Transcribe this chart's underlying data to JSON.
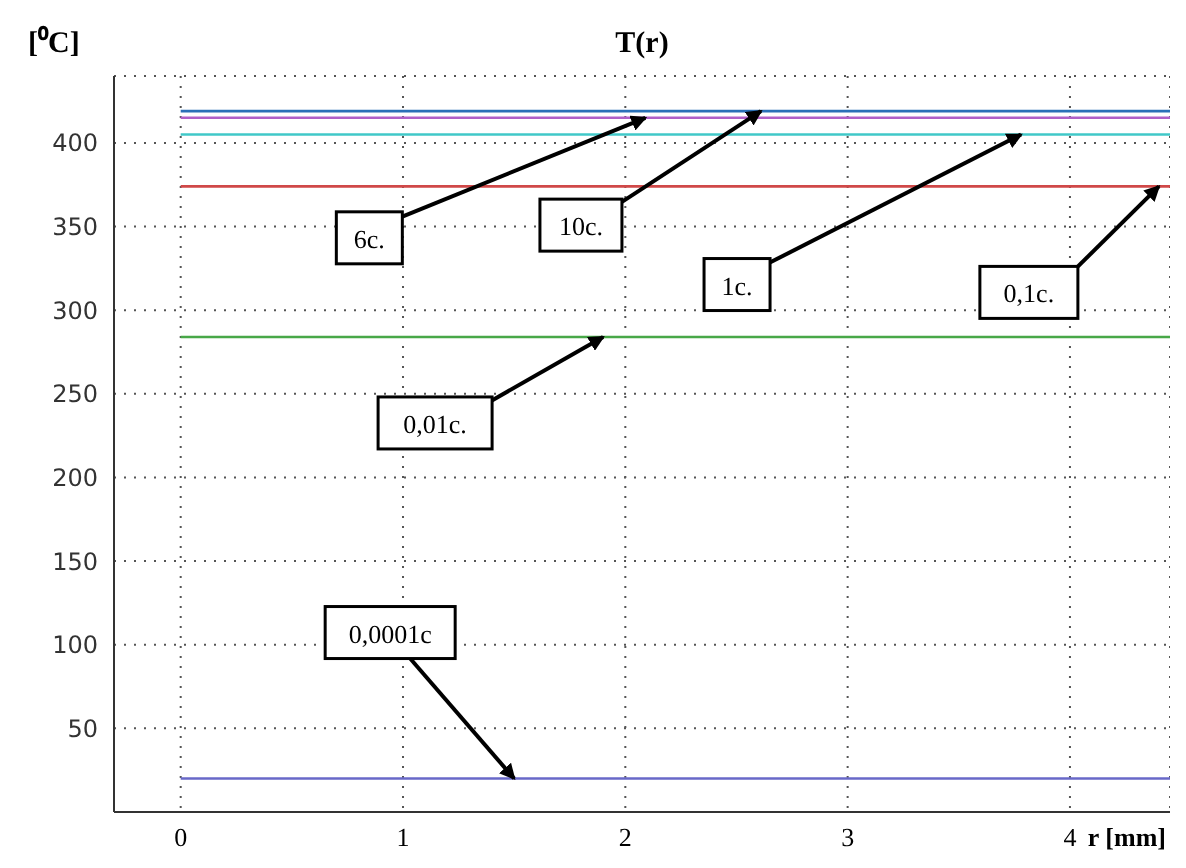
{
  "chart_data": {
    "type": "line",
    "title": "T(r)",
    "ylabel": "[⁰C]",
    "xlabel": "r [mm]",
    "x": [
      0,
      4.45
    ],
    "series": [
      {
        "color": "#2a70b8",
        "values": [
          419,
          419
        ]
      },
      {
        "color": "#b060c8",
        "values": [
          415,
          415
        ]
      },
      {
        "color": "#40c8c8",
        "values": [
          405,
          405
        ]
      },
      {
        "color": "#d04848",
        "values": [
          374,
          374
        ]
      },
      {
        "color": "#48a848",
        "values": [
          284,
          284
        ]
      },
      {
        "color": "#6868c8",
        "values": [
          20,
          20
        ]
      }
    ],
    "xlim": [
      -0.3,
      4.45
    ],
    "xticks": [
      0,
      1,
      2,
      3,
      4
    ],
    "ylim": [
      0,
      440
    ],
    "yticks": [
      50,
      100,
      150,
      200,
      250,
      300,
      350,
      400
    ],
    "grid": true,
    "marker": "none",
    "line_style": "solid",
    "annotations": [
      {
        "text": "6c.",
        "x": 2.09,
        "y": 415
      },
      {
        "text": "10c.",
        "x": 2.61,
        "y": 419
      },
      {
        "text": "1c.",
        "x": 3.78,
        "y": 405
      },
      {
        "text": "0,1c.",
        "x": 4.4,
        "y": 374
      },
      {
        "text": "0,01c.",
        "x": 1.9,
        "y": 284
      },
      {
        "text": "0,0001c",
        "x": 1.5,
        "y": 20
      }
    ]
  }
}
